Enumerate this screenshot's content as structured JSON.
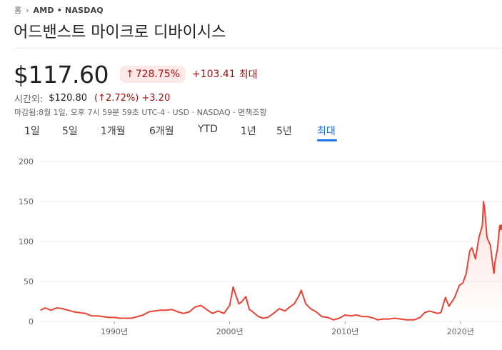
{
  "breadcrumb": {
    "home": "홈",
    "ticker": "AMD • NASDAQ"
  },
  "title": "어드밴스트 마이크로 디바이시스",
  "quote": {
    "price": "$117.60",
    "change_pct": "728.75%",
    "change_abs": "+103.41",
    "period": "최대"
  },
  "after_hours": {
    "label": "시간외:",
    "price": "$120.80",
    "change_pct": "(↑2.72%)",
    "change_abs": "+3.20"
  },
  "close_info": "마감됨:8월 1일, 오후 7시 59분 59초 UTC-4 · USD · NASDAQ · 면책조항",
  "tabs": [
    "1일",
    "5일",
    "1개월",
    "6개월",
    "YTD",
    "1년",
    "5년",
    "최대"
  ],
  "active_tab": "최대",
  "colors": {
    "line": "#ea4335",
    "negative": "#a50e0e",
    "negative_bg": "#fce8e6",
    "accent": "#1a73e8"
  },
  "chart_data": {
    "type": "line",
    "title": "",
    "xlabel": "",
    "ylabel": "",
    "xlim": [
      1983.5,
      2023.6
    ],
    "ylim": [
      0,
      200
    ],
    "grid": true,
    "y_ticks": [
      "200",
      "150",
      "100",
      "50",
      "0"
    ],
    "x_ticks": [
      {
        "year": 1990,
        "label": "1990년"
      },
      {
        "year": 2000,
        "label": "2000년"
      },
      {
        "year": 2010,
        "label": "2010년"
      },
      {
        "year": 2020,
        "label": "2020년"
      }
    ],
    "series": [
      {
        "points": [
          [
            1983.6,
            14
          ],
          [
            1984.0,
            17
          ],
          [
            1984.5,
            14
          ],
          [
            1985.0,
            17
          ],
          [
            1985.5,
            16
          ],
          [
            1986.0,
            14
          ],
          [
            1986.5,
            12
          ],
          [
            1987.0,
            11
          ],
          [
            1987.5,
            10
          ],
          [
            1988.0,
            7
          ],
          [
            1988.5,
            7
          ],
          [
            1989.0,
            6
          ],
          [
            1989.5,
            5
          ],
          [
            1990.0,
            5
          ],
          [
            1990.5,
            4
          ],
          [
            1991.0,
            4
          ],
          [
            1991.5,
            4
          ],
          [
            1992.0,
            6
          ],
          [
            1992.5,
            8
          ],
          [
            1993.0,
            12
          ],
          [
            1993.5,
            13
          ],
          [
            1994.0,
            14
          ],
          [
            1994.5,
            14
          ],
          [
            1995.0,
            15
          ],
          [
            1995.5,
            12
          ],
          [
            1996.0,
            10
          ],
          [
            1996.5,
            12
          ],
          [
            1997.0,
            18
          ],
          [
            1997.5,
            20
          ],
          [
            1998.0,
            15
          ],
          [
            1998.5,
            10
          ],
          [
            1999.0,
            13
          ],
          [
            1999.5,
            10
          ],
          [
            2000.0,
            20
          ],
          [
            2000.3,
            43
          ],
          [
            2000.6,
            30
          ],
          [
            2000.8,
            22
          ],
          [
            2001.0,
            24
          ],
          [
            2001.4,
            31
          ],
          [
            2001.7,
            15
          ],
          [
            2002.0,
            12
          ],
          [
            2002.5,
            6
          ],
          [
            2002.9,
            4
          ],
          [
            2003.3,
            5
          ],
          [
            2003.8,
            10
          ],
          [
            2004.3,
            16
          ],
          [
            2004.8,
            13
          ],
          [
            2005.2,
            18
          ],
          [
            2005.6,
            22
          ],
          [
            2006.0,
            32
          ],
          [
            2006.2,
            39
          ],
          [
            2006.6,
            22
          ],
          [
            2007.0,
            16
          ],
          [
            2007.5,
            12
          ],
          [
            2008.0,
            6
          ],
          [
            2008.5,
            5
          ],
          [
            2009.0,
            2
          ],
          [
            2009.5,
            4
          ],
          [
            2010.0,
            8
          ],
          [
            2010.5,
            7
          ],
          [
            2011.0,
            8
          ],
          [
            2011.5,
            6
          ],
          [
            2012.0,
            6
          ],
          [
            2012.5,
            4
          ],
          [
            2012.8,
            2
          ],
          [
            2013.3,
            3
          ],
          [
            2013.8,
            3
          ],
          [
            2014.3,
            4
          ],
          [
            2014.8,
            3
          ],
          [
            2015.3,
            2
          ],
          [
            2015.7,
            2
          ],
          [
            2016.0,
            2
          ],
          [
            2016.5,
            5
          ],
          [
            2016.9,
            11
          ],
          [
            2017.3,
            13
          ],
          [
            2017.8,
            11
          ],
          [
            2018.0,
            10
          ],
          [
            2018.3,
            11
          ],
          [
            2018.7,
            30
          ],
          [
            2019.0,
            19
          ],
          [
            2019.5,
            30
          ],
          [
            2019.9,
            45
          ],
          [
            2020.2,
            48
          ],
          [
            2020.5,
            60
          ],
          [
            2020.8,
            88
          ],
          [
            2021.0,
            92
          ],
          [
            2021.3,
            78
          ],
          [
            2021.6,
            105
          ],
          [
            2021.9,
            120
          ],
          [
            2022.0,
            150
          ],
          [
            2022.1,
            140
          ],
          [
            2022.3,
            105
          ],
          [
            2022.6,
            95
          ],
          [
            2022.8,
            70
          ],
          [
            2022.9,
            60
          ],
          [
            2023.0,
            75
          ],
          [
            2023.2,
            90
          ],
          [
            2023.4,
            120
          ],
          [
            2023.5,
            115
          ],
          [
            2023.58,
            117.6
          ]
        ]
      }
    ]
  }
}
